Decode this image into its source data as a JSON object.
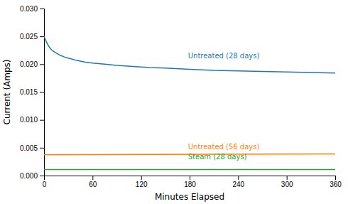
{
  "chart_data": {
    "type": "line",
    "xlabel": "Minutes Elapsed",
    "ylabel": "Current (Amps)",
    "xlim": [
      0,
      360
    ],
    "ylim": [
      0.0,
      0.03
    ],
    "xticks": [
      0,
      60,
      120,
      180,
      240,
      300,
      360
    ],
    "yticks": [
      {
        "value": 0.0,
        "label": "0.000"
      },
      {
        "value": 0.005,
        "label": "0.005"
      },
      {
        "value": 0.01,
        "label": "0.010"
      },
      {
        "value": 0.015,
        "label": "0.015"
      },
      {
        "value": 0.02,
        "label": "0.020"
      },
      {
        "value": 0.025,
        "label": "0.025"
      },
      {
        "value": 0.03,
        "label": "0.030"
      }
    ],
    "series": [
      {
        "x": [
          0,
          2,
          4,
          6,
          8,
          10,
          15,
          20,
          25,
          30,
          40,
          50,
          60,
          75,
          90,
          110,
          130,
          150,
          180,
          210,
          240,
          270,
          300,
          330,
          360
        ],
        "values": [
          0.025,
          0.0243,
          0.0237,
          0.0232,
          0.0228,
          0.0225,
          0.022,
          0.0216,
          0.0213,
          0.0211,
          0.0207,
          0.0204,
          0.0202,
          0.02,
          0.0198,
          0.0196,
          0.0194,
          0.0193,
          0.0191,
          0.0189,
          0.0188,
          0.0187,
          0.0186,
          0.0185,
          0.0184
        ]
      },
      {
        "x": [
          0,
          360
        ],
        "values": [
          0.00375,
          0.0039
        ]
      },
      {
        "x": [
          0,
          360
        ],
        "values": [
          0.0011,
          0.0011
        ]
      }
    ],
    "annotations": [
      {
        "text": "Untreated (28 days)",
        "x": 178,
        "y": 0.0207
      },
      {
        "text": "Untreated (56 days)",
        "x": 178,
        "y": 0.0044
      },
      {
        "text": "Steam (28 days)",
        "x": 178,
        "y": 0.00265
      }
    ]
  }
}
